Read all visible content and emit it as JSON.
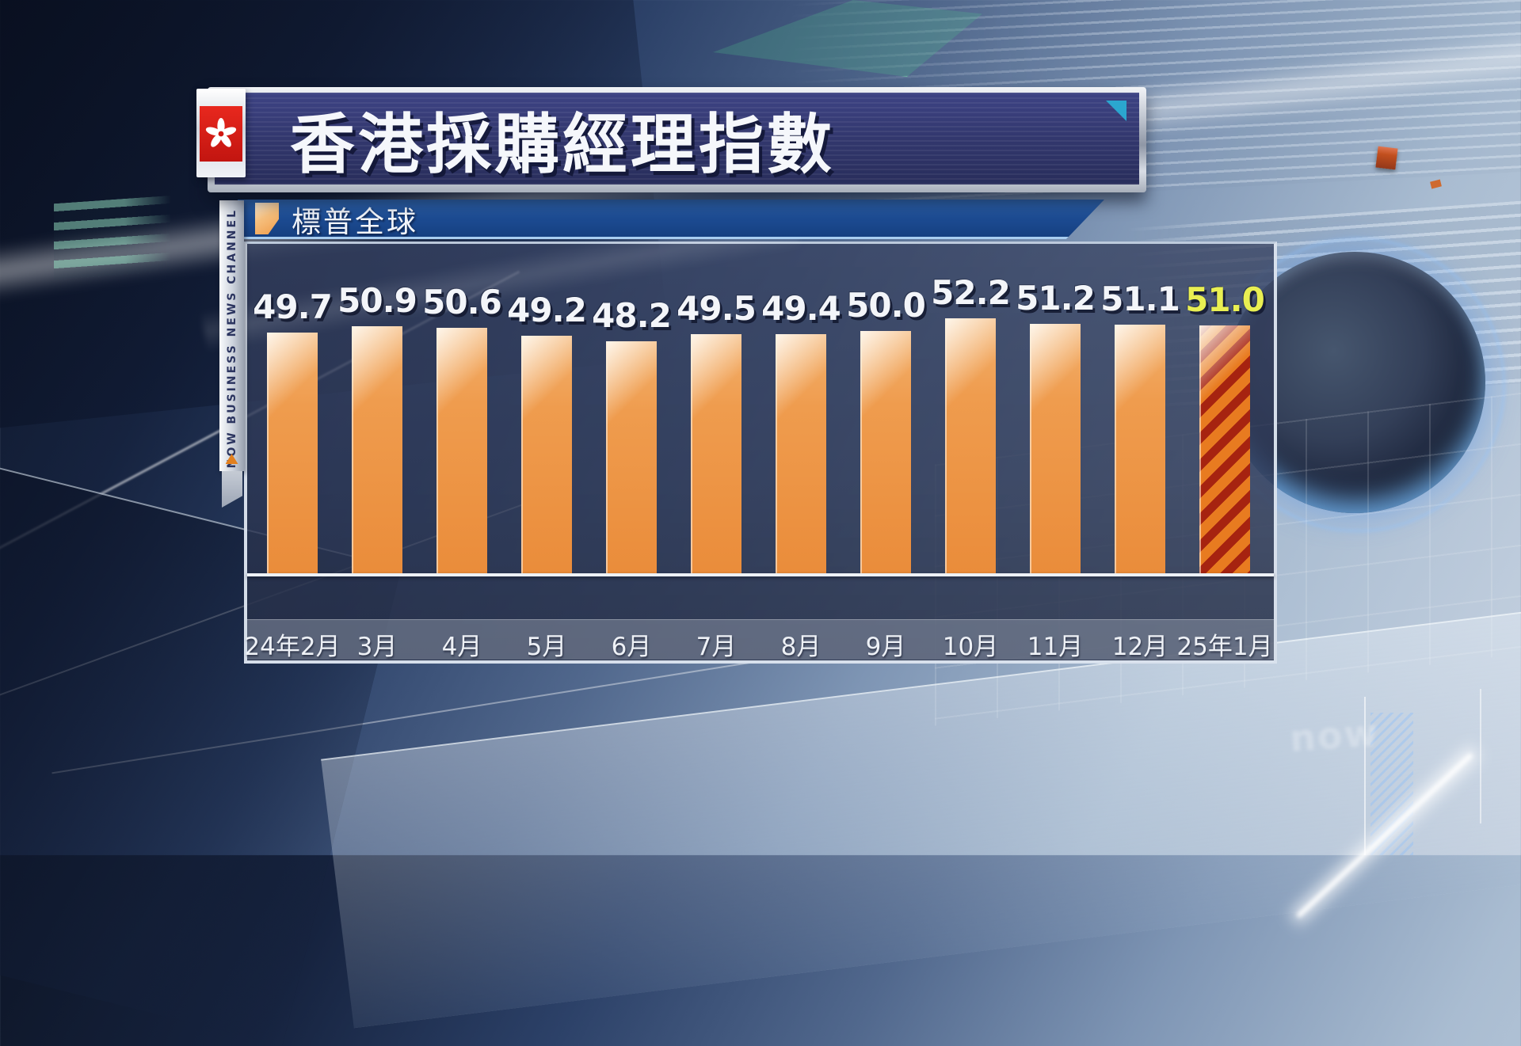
{
  "title_banner": {
    "title": "香港採購經理指數",
    "flag": "hong-kong-flag"
  },
  "legend": {
    "label": "標普全球",
    "marker_color": "#ef9c4a"
  },
  "channel_strip": {
    "text": "NOW BUSINESS NEWS CHANNEL"
  },
  "watermark": "now",
  "chart_data": {
    "type": "bar",
    "title": "香港採購經理指數",
    "series_name": "標普全球",
    "categories": [
      "24年2月",
      "3月",
      "4月",
      "5月",
      "6月",
      "7月",
      "8月",
      "9月",
      "10月",
      "11月",
      "12月",
      "25年1月"
    ],
    "values": [
      49.7,
      50.9,
      50.6,
      49.2,
      48.2,
      49.5,
      49.4,
      50.0,
      52.2,
      51.2,
      51.1,
      51.0
    ],
    "value_labels_shown": true,
    "highlight_index": 11,
    "highlight_style": "red-diagonal-stripes",
    "axis_note": "truncated value axis; bars nearly equal height",
    "legend_position": "top-left",
    "grid": false,
    "colors": {
      "bar": "#ee9a4c",
      "highlight_bar_stripe_dark": "#a62310",
      "highlight_bar_stripe_orange": "#e87b20",
      "value_label": "#f3f5f9",
      "highlight_value_label": "#e9ef52",
      "legend_bar": "#1d4c93",
      "banner_navy": "#32376d"
    }
  }
}
